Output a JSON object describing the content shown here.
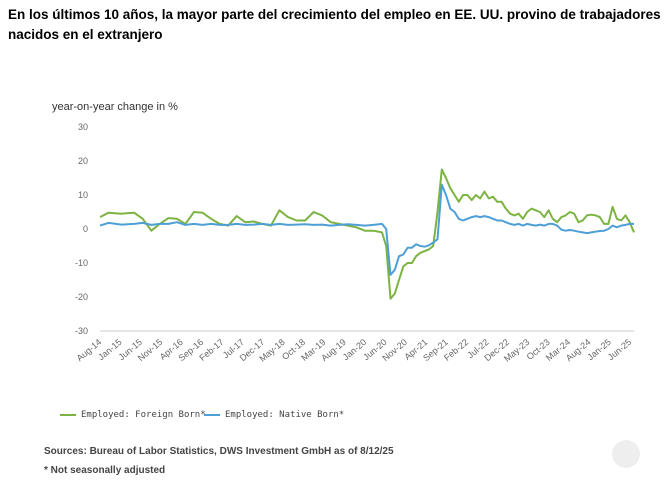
{
  "title": "En los últimos 10 años, la mayor parte del crecimiento del empleo en EE. UU. provino de trabajadores nacidos en el extranjero",
  "chart_data": {
    "type": "line",
    "title": "En los últimos 10 años, la mayor parte del crecimiento del empleo en EE. UU. provino de trabajadores nacidos en el extranjero",
    "ylabel": "year-on-year change in %",
    "xlabel": "",
    "ylim": [
      -30,
      30
    ],
    "yticks": [
      30,
      20,
      10,
      0,
      -10,
      -20,
      -30
    ],
    "xticks": [
      "Aug-14",
      "Jan-15",
      "Jun-15",
      "Nov-15",
      "Apr-16",
      "Sep-16",
      "Feb-17",
      "Jul-17",
      "Dec-17",
      "May-18",
      "Oct-18",
      "Mar-19",
      "Aug-19",
      "Jan-20",
      "Jun-20",
      "Nov-20",
      "Apr-21",
      "Sep-21",
      "Feb-22",
      "Jul-22",
      "Dec-22",
      "May-23",
      "Oct-23",
      "Mar-24",
      "Aug-24",
      "Jan-25",
      "Jun-25"
    ],
    "grid": false,
    "legend_position": "bottom-left",
    "series": [
      {
        "name": "Employed: Foreign Born*",
        "color": "#7cb342",
        "points": [
          [
            0,
            3.5
          ],
          [
            2,
            4.8
          ],
          [
            5,
            4.5
          ],
          [
            8,
            4.8
          ],
          [
            10,
            3
          ],
          [
            12,
            -0.5
          ],
          [
            14,
            1.5
          ],
          [
            16,
            3.2
          ],
          [
            18,
            3
          ],
          [
            20,
            1.5
          ],
          [
            22,
            5
          ],
          [
            24,
            4.8
          ],
          [
            26,
            3
          ],
          [
            28,
            1.5
          ],
          [
            30,
            1
          ],
          [
            32,
            3.8
          ],
          [
            34,
            2
          ],
          [
            36,
            2.2
          ],
          [
            38,
            1.5
          ],
          [
            40,
            1
          ],
          [
            42,
            5.5
          ],
          [
            44,
            3.5
          ],
          [
            46,
            2.5
          ],
          [
            48,
            2.5
          ],
          [
            50,
            5
          ],
          [
            52,
            4
          ],
          [
            54,
            2
          ],
          [
            56,
            1.5
          ],
          [
            58,
            1
          ],
          [
            60,
            0.5
          ],
          [
            62,
            -0.5
          ],
          [
            64,
            -0.5
          ],
          [
            66,
            -1
          ],
          [
            67,
            -5
          ],
          [
            68,
            -20.5
          ],
          [
            69,
            -19
          ],
          [
            70,
            -15
          ],
          [
            71,
            -11
          ],
          [
            72,
            -10
          ],
          [
            73,
            -10
          ],
          [
            74,
            -8
          ],
          [
            75,
            -7
          ],
          [
            76,
            -6.5
          ],
          [
            77,
            -6
          ],
          [
            78,
            -5
          ],
          [
            79,
            5
          ],
          [
            80,
            17.5
          ],
          [
            81,
            15
          ],
          [
            82,
            12
          ],
          [
            83,
            10
          ],
          [
            84,
            8
          ],
          [
            85,
            10
          ],
          [
            86,
            10
          ],
          [
            87,
            8.5
          ],
          [
            88,
            10
          ],
          [
            89,
            9
          ],
          [
            90,
            11
          ],
          [
            91,
            9
          ],
          [
            92,
            9.5
          ],
          [
            93,
            8
          ],
          [
            94,
            8
          ],
          [
            95,
            6
          ],
          [
            96,
            4.5
          ],
          [
            97,
            4
          ],
          [
            98,
            4.5
          ],
          [
            99,
            3
          ],
          [
            100,
            5
          ],
          [
            101,
            6
          ],
          [
            102,
            5.5
          ],
          [
            103,
            5
          ],
          [
            104,
            3.5
          ],
          [
            105,
            5.5
          ],
          [
            106,
            3
          ],
          [
            107,
            2
          ],
          [
            108,
            3.5
          ],
          [
            109,
            4
          ],
          [
            110,
            5
          ],
          [
            111,
            4.5
          ],
          [
            112,
            2
          ],
          [
            113,
            2.5
          ],
          [
            114,
            4
          ],
          [
            115,
            4.2
          ],
          [
            116,
            4
          ],
          [
            117,
            3.5
          ],
          [
            118,
            1.5
          ],
          [
            119,
            1.5
          ],
          [
            120,
            6.5
          ],
          [
            121,
            3
          ],
          [
            122,
            2.5
          ],
          [
            123,
            4
          ],
          [
            124,
            2
          ],
          [
            125,
            -1
          ]
        ]
      },
      {
        "name": "Employed: Native Born*",
        "color": "#4d9fd6",
        "points": [
          [
            0,
            1
          ],
          [
            2,
            1.8
          ],
          [
            5,
            1.3
          ],
          [
            8,
            1.5
          ],
          [
            10,
            1.8
          ],
          [
            12,
            1.2
          ],
          [
            14,
            1.5
          ],
          [
            16,
            1.5
          ],
          [
            18,
            2
          ],
          [
            20,
            1.2
          ],
          [
            22,
            1.5
          ],
          [
            24,
            1.2
          ],
          [
            26,
            1.5
          ],
          [
            28,
            1.2
          ],
          [
            30,
            1.2
          ],
          [
            32,
            1.5
          ],
          [
            34,
            1.2
          ],
          [
            36,
            1.3
          ],
          [
            38,
            1.5
          ],
          [
            40,
            1.2
          ],
          [
            42,
            1.5
          ],
          [
            44,
            1.2
          ],
          [
            46,
            1.3
          ],
          [
            48,
            1.4
          ],
          [
            50,
            1.2
          ],
          [
            52,
            1.3
          ],
          [
            54,
            1
          ],
          [
            56,
            1.2
          ],
          [
            58,
            1.4
          ],
          [
            60,
            1.2
          ],
          [
            62,
            1
          ],
          [
            64,
            1.2
          ],
          [
            66,
            1.5
          ],
          [
            67,
            0
          ],
          [
            68,
            -13.5
          ],
          [
            69,
            -12
          ],
          [
            70,
            -8
          ],
          [
            71,
            -7.5
          ],
          [
            72,
            -5.5
          ],
          [
            73,
            -5.5
          ],
          [
            74,
            -4.5
          ],
          [
            75,
            -5
          ],
          [
            76,
            -5.2
          ],
          [
            77,
            -4.8
          ],
          [
            78,
            -4
          ],
          [
            79,
            -3
          ],
          [
            80,
            13
          ],
          [
            81,
            10
          ],
          [
            82,
            6
          ],
          [
            83,
            5
          ],
          [
            84,
            3
          ],
          [
            85,
            2.5
          ],
          [
            86,
            3
          ],
          [
            87,
            3.5
          ],
          [
            88,
            3.8
          ],
          [
            89,
            3.5
          ],
          [
            90,
            3.8
          ],
          [
            91,
            3.5
          ],
          [
            92,
            3
          ],
          [
            93,
            2.5
          ],
          [
            94,
            2.5
          ],
          [
            95,
            2
          ],
          [
            96,
            1.5
          ],
          [
            97,
            1.2
          ],
          [
            98,
            1.5
          ],
          [
            99,
            1
          ],
          [
            100,
            1.5
          ],
          [
            101,
            1.2
          ],
          [
            102,
            1
          ],
          [
            103,
            1.3
          ],
          [
            104,
            1
          ],
          [
            105,
            1.5
          ],
          [
            106,
            1.5
          ],
          [
            107,
            1
          ],
          [
            108,
            -0.2
          ],
          [
            109,
            -0.5
          ],
          [
            110,
            -0.3
          ],
          [
            111,
            -0.5
          ],
          [
            112,
            -0.8
          ],
          [
            113,
            -1
          ],
          [
            114,
            -1.2
          ],
          [
            115,
            -1
          ],
          [
            116,
            -0.8
          ],
          [
            117,
            -0.6
          ],
          [
            118,
            -0.5
          ],
          [
            119,
            0
          ],
          [
            120,
            1
          ],
          [
            121,
            0.5
          ],
          [
            122,
            1
          ],
          [
            123,
            1.2
          ],
          [
            124,
            1.5
          ],
          [
            125,
            1.5
          ]
        ]
      }
    ]
  },
  "source": "Sources: Bureau of Labor Statistics, DWS Investment GmbH as of 8/12/25",
  "note": "* Not seasonally adjusted"
}
